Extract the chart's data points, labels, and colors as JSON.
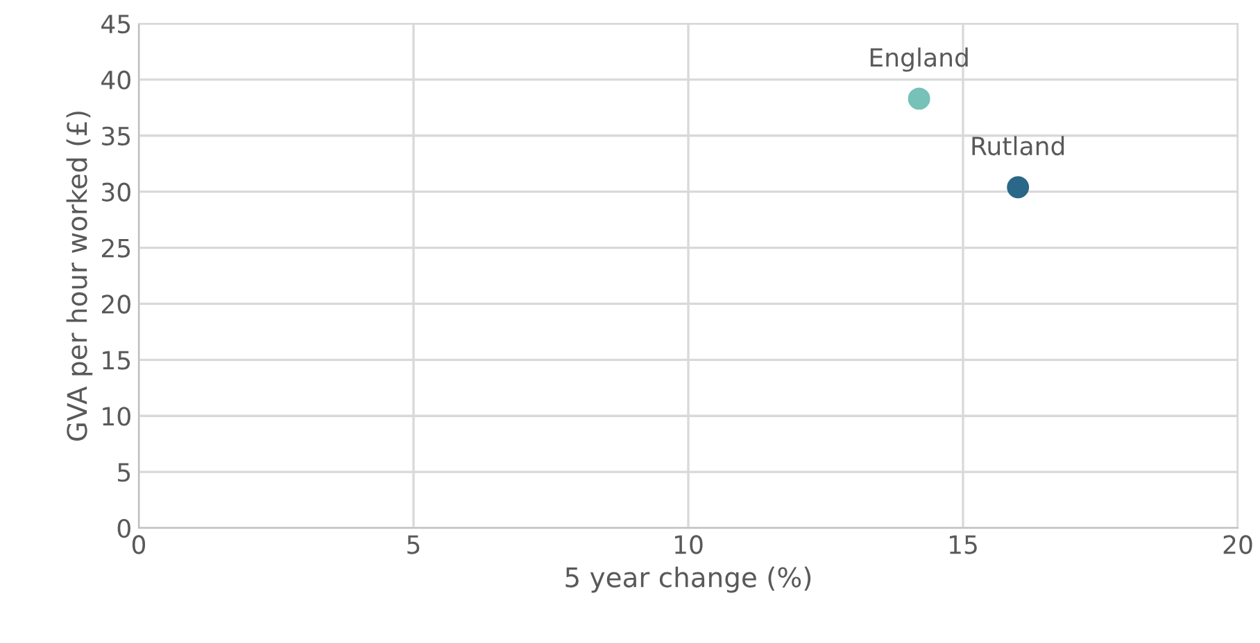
{
  "chart_data": {
    "type": "scatter",
    "xlabel": "5 year change (%)",
    "ylabel": "GVA per hour worked (£)",
    "series": [
      {
        "name": "England",
        "color": "#76c1b8",
        "x": [
          14.2
        ],
        "values": [
          38.3
        ]
      },
      {
        "name": "Rutland",
        "color": "#2b6788",
        "x": [
          16.0
        ],
        "values": [
          30.4
        ]
      }
    ],
    "xlim": [
      0,
      20
    ],
    "xticks": [
      0,
      5,
      10,
      15,
      20
    ],
    "ylim": [
      0,
      45
    ],
    "yticks": [
      0,
      5,
      10,
      15,
      20,
      25,
      30,
      35,
      40,
      45
    ],
    "grid": true,
    "marker": "circle"
  }
}
